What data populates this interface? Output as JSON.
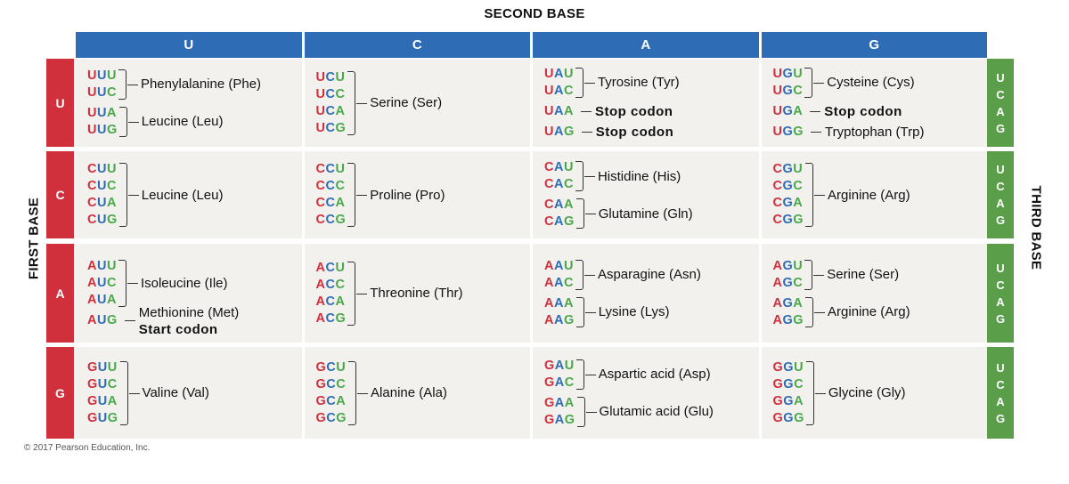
{
  "titles": {
    "second_base": "SECOND BASE",
    "first_base": "FIRST BASE",
    "third_base": "THIRD BASE"
  },
  "colors": {
    "header_blue": "#2e6db5",
    "first_base_red": "#d0303c",
    "third_base_green": "#5a9e4a",
    "cell_bg": "#f2f1ee",
    "nucleotide_first": "#d0303c",
    "nucleotide_second": "#2e6db5",
    "nucleotide_third": "#4aa84a"
  },
  "second_base": [
    "U",
    "C",
    "A",
    "G"
  ],
  "third_base": [
    "U",
    "C",
    "A",
    "G"
  ],
  "rows": [
    {
      "first": "U",
      "cells": [
        {
          "groups": [
            {
              "codons": [
                "UUU",
                "UUC"
              ],
              "aa": "Phenylalanine (Phe)"
            },
            {
              "codons": [
                "UUA",
                "UUG"
              ],
              "aa": "Leucine (Leu)"
            }
          ]
        },
        {
          "groups": [
            {
              "codons": [
                "UCU",
                "UCC",
                "UCA",
                "UCG"
              ],
              "aa": "Serine (Ser)"
            }
          ]
        },
        {
          "groups": [
            {
              "codons": [
                "UAU",
                "UAC"
              ],
              "aa": "Tyrosine (Tyr)"
            },
            {
              "codons": [
                "UAA"
              ],
              "aa": "Stop codon",
              "bold": true
            },
            {
              "codons": [
                "UAG"
              ],
              "aa": "Stop codon",
              "bold": true
            }
          ]
        },
        {
          "groups": [
            {
              "codons": [
                "UGU",
                "UGC"
              ],
              "aa": "Cysteine (Cys)"
            },
            {
              "codons": [
                "UGA"
              ],
              "aa": "Stop codon",
              "bold": true
            },
            {
              "codons": [
                "UGG"
              ],
              "aa": "Tryptophan (Trp)"
            }
          ]
        }
      ]
    },
    {
      "first": "C",
      "cells": [
        {
          "groups": [
            {
              "codons": [
                "CUU",
                "CUC",
                "CUA",
                "CUG"
              ],
              "aa": "Leucine (Leu)"
            }
          ]
        },
        {
          "groups": [
            {
              "codons": [
                "CCU",
                "CCC",
                "CCA",
                "CCG"
              ],
              "aa": "Proline (Pro)"
            }
          ]
        },
        {
          "groups": [
            {
              "codons": [
                "CAU",
                "CAC"
              ],
              "aa": "Histidine (His)"
            },
            {
              "codons": [
                "CAA",
                "CAG"
              ],
              "aa": "Glutamine (Gln)"
            }
          ]
        },
        {
          "groups": [
            {
              "codons": [
                "CGU",
                "CGC",
                "CGA",
                "CGG"
              ],
              "aa": "Arginine (Arg)"
            }
          ]
        }
      ]
    },
    {
      "first": "A",
      "cells": [
        {
          "groups": [
            {
              "codons": [
                "AUU",
                "AUC",
                "AUA"
              ],
              "aa": "Isoleucine (Ile)"
            },
            {
              "codons": [
                "AUG"
              ],
              "aa": "Methionine (Met)",
              "aa2": "Start codon"
            }
          ]
        },
        {
          "groups": [
            {
              "codons": [
                "ACU",
                "ACC",
                "ACA",
                "ACG"
              ],
              "aa": "Threonine (Thr)"
            }
          ]
        },
        {
          "groups": [
            {
              "codons": [
                "AAU",
                "AAC"
              ],
              "aa": "Asparagine (Asn)"
            },
            {
              "codons": [
                "AAA",
                "AAG"
              ],
              "aa": "Lysine (Lys)"
            }
          ]
        },
        {
          "groups": [
            {
              "codons": [
                "AGU",
                "AGC"
              ],
              "aa": "Serine (Ser)"
            },
            {
              "codons": [
                "AGA",
                "AGG"
              ],
              "aa": "Arginine (Arg)"
            }
          ]
        }
      ]
    },
    {
      "first": "G",
      "cells": [
        {
          "groups": [
            {
              "codons": [
                "GUU",
                "GUC",
                "GUA",
                "GUG"
              ],
              "aa": "Valine (Val)"
            }
          ]
        },
        {
          "groups": [
            {
              "codons": [
                "GCU",
                "GCC",
                "GCA",
                "GCG"
              ],
              "aa": "Alanine (Ala)"
            }
          ]
        },
        {
          "groups": [
            {
              "codons": [
                "GAU",
                "GAC"
              ],
              "aa": "Aspartic acid (Asp)"
            },
            {
              "codons": [
                "GAA",
                "GAG"
              ],
              "aa": "Glutamic acid (Glu)"
            }
          ]
        },
        {
          "groups": [
            {
              "codons": [
                "GGU",
                "GGC",
                "GGA",
                "GGG"
              ],
              "aa": "Glycine (Gly)"
            }
          ]
        }
      ]
    }
  ],
  "copyright": "© 2017 Pearson Education, Inc."
}
